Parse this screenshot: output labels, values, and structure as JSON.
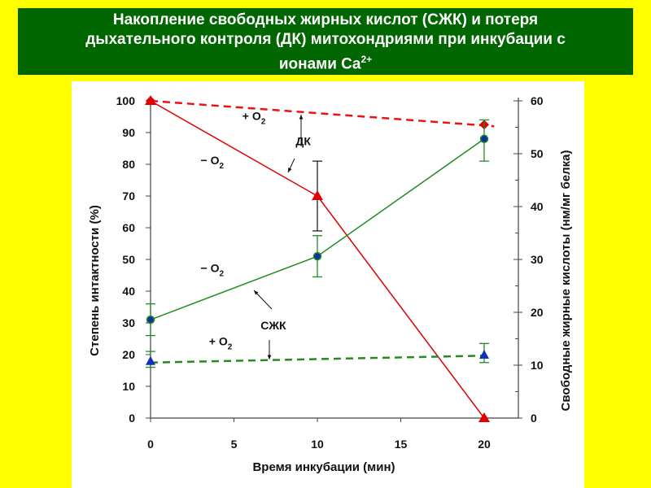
{
  "title": {
    "line1": "Накопление свободных жирных кислот (СЖК) и потеря",
    "line2": "дыхательного контроля (ДК) митохондриями при инкубации с",
    "line3": "ионами Ca",
    "sup": "2+"
  },
  "chart_data": {
    "type": "line",
    "xlabel": "Время инкубации (мин)",
    "ylabel": "Степень интактности (%)",
    "y2label": "Свободные жирные кислоты (нм/мг белка)",
    "xlim": [
      0,
      22
    ],
    "ylim": [
      0,
      100
    ],
    "y2lim": [
      0,
      60
    ],
    "xticks": [
      "0",
      "5",
      "10",
      "15",
      "20"
    ],
    "yticks": [
      "0",
      "10",
      "20",
      "30",
      "40",
      "50",
      "60",
      "70",
      "80",
      "90",
      "100"
    ],
    "y2ticks": [
      "0",
      "10",
      "20",
      "30",
      "40",
      "50",
      "60"
    ],
    "series": [
      {
        "name": "ДК − O2",
        "axis": "left",
        "color": "#dd0000",
        "dashed": false,
        "marker": "triangle",
        "x": [
          0,
          10,
          20
        ],
        "y": [
          100,
          70,
          0
        ],
        "err": [
          null,
          [
            59,
            81
          ],
          null
        ]
      },
      {
        "name": "ДК + O2",
        "axis": "left",
        "color": "#ee1111",
        "dashed": true,
        "marker": "diamond",
        "x": [
          0,
          20
        ],
        "y": [
          100,
          92.5
        ],
        "line_end": [
          20.6,
          92
        ]
      },
      {
        "name": "СЖК − O2",
        "axis": "right",
        "color": "#228b22",
        "dashed": false,
        "marker": "circle",
        "x": [
          0,
          10,
          20
        ],
        "y": [
          18.6,
          30.6,
          52.8
        ],
        "err": [
          [
            15.6,
            21.6
          ],
          [
            26.7,
            34.5
          ],
          [
            48.6,
            56.4
          ]
        ]
      },
      {
        "name": "СЖК + O2",
        "axis": "right",
        "color": "#228b22",
        "dashed": true,
        "marker": "triangle-blue",
        "x": [
          0,
          20
        ],
        "y": [
          10.8,
          12
        ],
        "line": [
          [
            0,
            10.5
          ],
          [
            20,
            11.8
          ]
        ],
        "err": [
          [
            9.6,
            12.6
          ],
          [
            10.5,
            14.1
          ]
        ]
      }
    ],
    "annotations": [
      {
        "text": "+ O",
        "sub": "2",
        "x": 5.5,
        "y": 94
      },
      {
        "text": "ДК",
        "x": 8.7,
        "y": 86
      },
      {
        "text": "− O",
        "sub": "2",
        "x": 3,
        "y": 80
      },
      {
        "text": "− O",
        "sub": "2",
        "x": 3,
        "y": 46
      },
      {
        "text": "СЖК",
        "x": 6.6,
        "y": 28
      },
      {
        "text": "+ O",
        "sub": "2",
        "x": 3.5,
        "y": 23
      }
    ]
  }
}
